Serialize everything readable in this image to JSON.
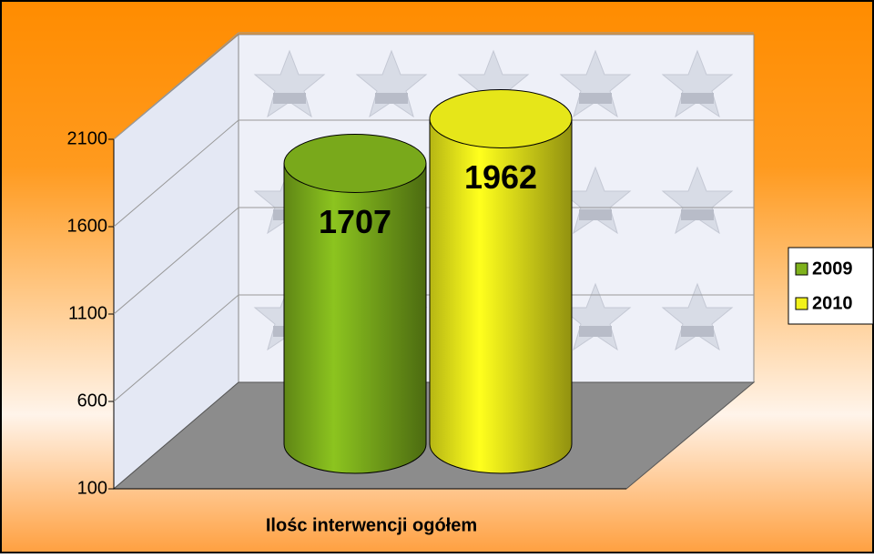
{
  "chart_data": {
    "type": "cylinder3d",
    "categories": [
      "Ilośc interwencji ogółem"
    ],
    "series": [
      {
        "name": "2009",
        "color": "#7fb21c",
        "values": [
          1707
        ]
      },
      {
        "name": "2010",
        "color": "#f2f21a",
        "values": [
          1962
        ]
      }
    ],
    "ylim": [
      100,
      2100
    ],
    "yticks": [
      100,
      600,
      1100,
      1600,
      2100
    ],
    "grid": true,
    "legend": "right"
  }
}
